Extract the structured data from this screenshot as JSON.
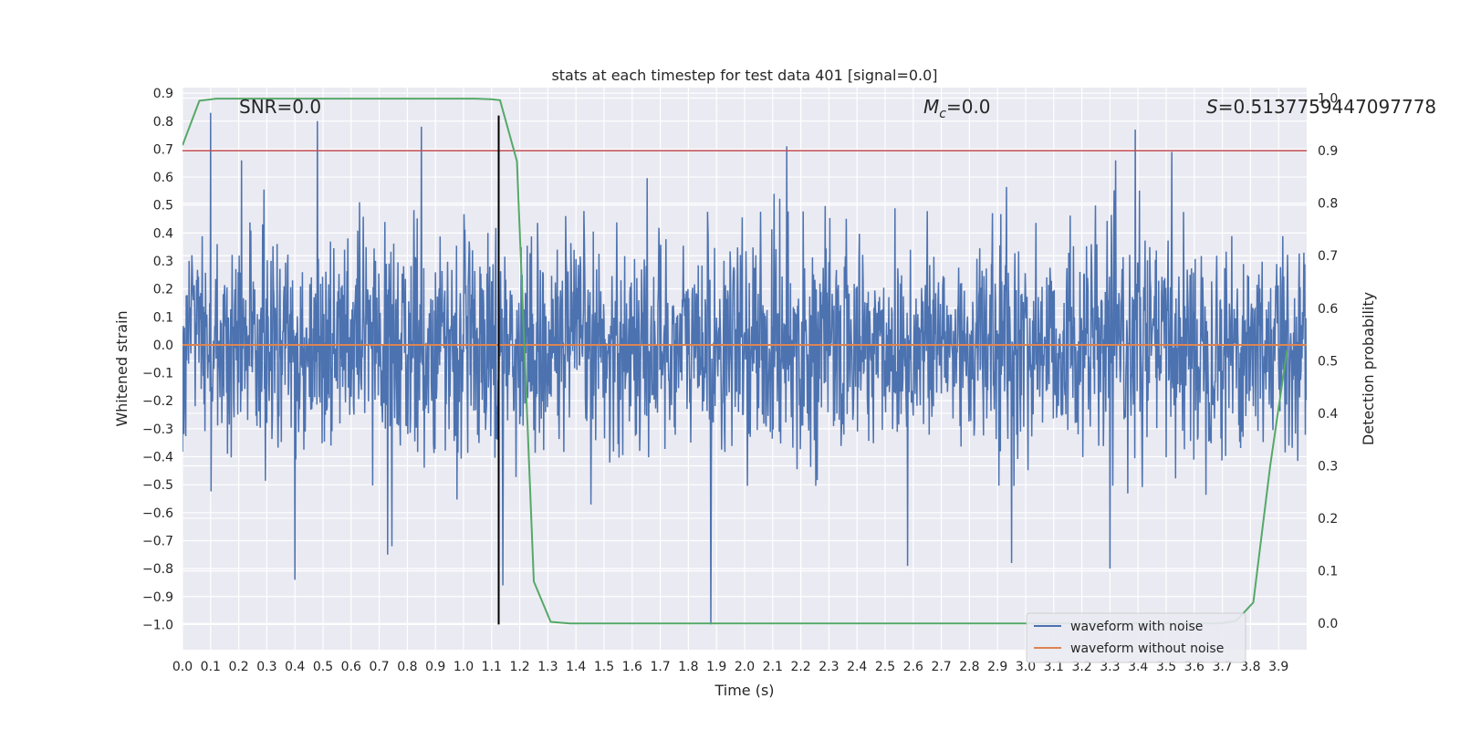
{
  "chart_data": {
    "type": "line",
    "title": "stats at each timestep for test data 401 [signal=0.0]",
    "xlabel": "Time (s)",
    "ylabel": "Whitened strain",
    "y2label": "Detection probability",
    "xlim": [
      0.0,
      4.0
    ],
    "ylim": [
      -1.09,
      0.92
    ],
    "y2lim": [
      -0.05,
      1.02
    ],
    "x_ticks": [
      0.0,
      0.1,
      0.2,
      0.3,
      0.4,
      0.5,
      0.6,
      0.7,
      0.8,
      0.9,
      1.0,
      1.1,
      1.2,
      1.3,
      1.4,
      1.5,
      1.6,
      1.7,
      1.8,
      1.9,
      2.0,
      2.1,
      2.2,
      2.3,
      2.4,
      2.5,
      2.6,
      2.7,
      2.8,
      2.9,
      3.0,
      3.1,
      3.2,
      3.3,
      3.4,
      3.5,
      3.6,
      3.7,
      3.8,
      3.9
    ],
    "y_ticks": [
      0.9,
      0.8,
      0.7,
      0.6,
      0.5,
      0.4,
      0.3,
      0.2,
      0.1,
      0.0,
      -0.1,
      -0.2,
      -0.3,
      -0.4,
      -0.5,
      -0.6,
      -0.7,
      -0.8,
      -0.9,
      -1.0
    ],
    "y2_ticks": [
      0.0,
      0.1,
      0.2,
      0.3,
      0.4,
      0.5,
      0.6,
      0.7,
      0.8,
      0.9,
      1.0
    ],
    "grid": true,
    "legend_placement": "lower-right",
    "colors": {
      "noisy": "#4c72b0",
      "clean": "#dd8452",
      "probability": "#55a868",
      "threshold": "#c44e52",
      "marker": "#000000",
      "background": "#eaeaf2"
    },
    "annotations": {
      "snr": "SNR=0.0",
      "mc_symbol": "M",
      "mc_sub": "c",
      "mc_value": "=0.0",
      "s_symbol": "S",
      "s_value": "=0.5137759447097778"
    },
    "series": [
      {
        "name": "waveform with noise",
        "role": "noise",
        "noise_std": 0.19,
        "x_start": 0.0,
        "x_end": 4.0,
        "peaks": [
          {
            "x": 0.1,
            "y": 0.83
          },
          {
            "x": 0.21,
            "y": 0.66
          },
          {
            "x": 0.48,
            "y": 0.8
          },
          {
            "x": 0.85,
            "y": 0.78
          },
          {
            "x": 2.15,
            "y": 0.71
          },
          {
            "x": 3.39,
            "y": 0.77
          },
          {
            "x": 3.52,
            "y": 0.69
          },
          {
            "x": 0.4,
            "y": -0.84
          },
          {
            "x": 1.88,
            "y": -1.0
          },
          {
            "x": 3.3,
            "y": -0.8
          },
          {
            "x": 2.58,
            "y": -0.79
          },
          {
            "x": 2.95,
            "y": -0.78
          },
          {
            "x": 0.73,
            "y": -0.75
          },
          {
            "x": 1.14,
            "y": -0.86
          }
        ]
      },
      {
        "name": "waveform without noise",
        "role": "clean",
        "x": [
          0.0,
          4.0
        ],
        "y": [
          0.0,
          0.0
        ]
      },
      {
        "role": "probability",
        "axis": "right",
        "x": [
          0.0,
          0.06,
          0.12,
          0.18,
          1.04,
          1.1,
          1.13,
          1.19,
          1.25,
          1.31,
          1.38,
          3.69,
          3.75,
          3.81,
          3.87,
          3.93
        ],
        "y": [
          0.91,
          0.995,
          0.999,
          0.999,
          0.999,
          0.998,
          0.996,
          0.88,
          0.08,
          0.003,
          0.0,
          0.0,
          0.005,
          0.04,
          0.3,
          0.52
        ]
      },
      {
        "role": "threshold",
        "axis": "right",
        "x": [
          0.0,
          4.0
        ],
        "y": [
          0.9,
          0.9
        ]
      },
      {
        "role": "marker",
        "x": [
          1.125,
          1.125
        ],
        "y": [
          -1.0,
          0.82
        ]
      }
    ]
  }
}
